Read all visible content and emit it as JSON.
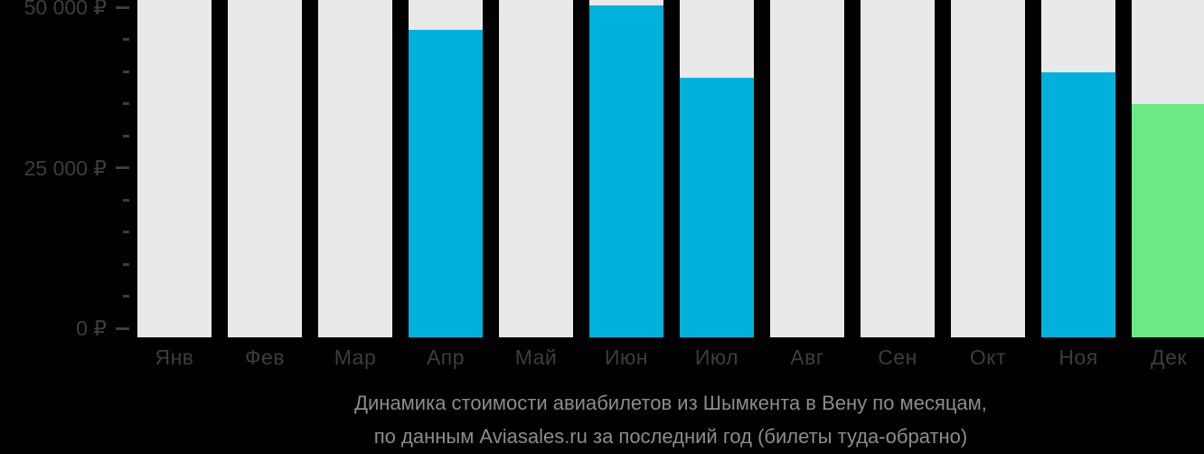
{
  "title": {
    "line1": "Динамика стоимости авиабилетов из Шымкента в Вену по месяцам,",
    "line2": "по данным Aviasales.ru за последний год (билеты туда-обратно)"
  },
  "colors": {
    "background": "#000000",
    "bar_empty": "#e9e9e9",
    "bar_blue": "#00b1dc",
    "bar_green": "#6cea86",
    "axis_text": "#3d3d3d",
    "tick": "#3d3d3d",
    "title_text": "#8c8c8c"
  },
  "y_axis": {
    "currency_suffix": "₽",
    "major_ticks": [
      {
        "value": 50000,
        "label": "50 000 ₽"
      },
      {
        "value": 25000,
        "label": "25 000 ₽"
      },
      {
        "value": 0,
        "label": "0 ₽"
      }
    ],
    "minor_tick_values": [
      45000,
      40000,
      35000,
      30000,
      20000,
      15000,
      10000,
      5000
    ],
    "max": 50000,
    "min": 0
  },
  "chart_data": {
    "type": "bar",
    "title": "Динамика стоимости авиабилетов из Шымкента в Вену по месяцам, по данным Aviasales.ru за последний год (билеты туда-обратно)",
    "xlabel": "",
    "ylabel": "₽",
    "ylim": [
      0,
      50000
    ],
    "grid": false,
    "legend": false,
    "categories": [
      "Янв",
      "Фев",
      "Мар",
      "Апр",
      "Май",
      "Июн",
      "Июл",
      "Авг",
      "Сен",
      "Окт",
      "Ноя",
      "Дек"
    ],
    "category_keys": [
      "jan",
      "feb",
      "mar",
      "apr",
      "may",
      "jun",
      "jul",
      "aug",
      "sep",
      "oct",
      "nov",
      "dec"
    ],
    "values": [
      null,
      null,
      null,
      46500,
      null,
      50300,
      39000,
      null,
      null,
      null,
      39900,
      35000
    ],
    "bar_roles": [
      "empty",
      "empty",
      "empty",
      "blue",
      "empty",
      "blue",
      "blue",
      "empty",
      "empty",
      "empty",
      "blue",
      "green"
    ],
    "note": "empty role = full-height light-gray placeholder column (no price data)"
  }
}
